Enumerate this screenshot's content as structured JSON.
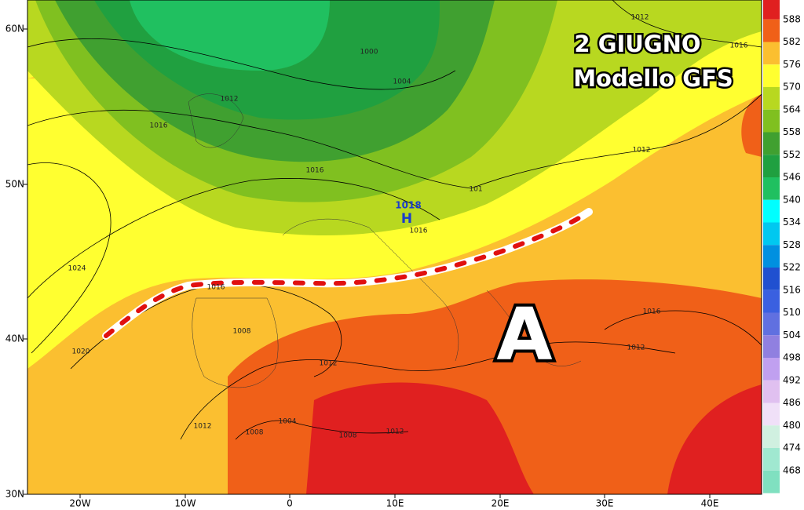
{
  "map": {
    "title": "2 GIUGNO",
    "subtitle": "Modello GFS",
    "high_label": "A",
    "pressure_center": {
      "symbol": "H",
      "value": "1018"
    },
    "lat_labels": [
      "60N",
      "50N",
      "40N",
      "30N"
    ],
    "lon_labels": [
      "20W",
      "10W",
      "0",
      "10E",
      "20E",
      "30E",
      "40E"
    ],
    "isobar_labels": [
      "1000",
      "1004",
      "1012",
      "1016",
      "1016",
      "1012",
      "1016",
      "1012",
      "101",
      "1016",
      "1024",
      "1016",
      "1020",
      "1008",
      "1012",
      "1016",
      "1012",
      "1012",
      "1008",
      "1004",
      "1008",
      "1012"
    ]
  },
  "legend": {
    "labels": [
      588,
      582,
      576,
      570,
      564,
      558,
      552,
      546,
      540,
      534,
      528,
      522,
      516,
      510,
      504,
      498,
      492,
      486,
      480,
      474,
      468
    ]
  }
}
